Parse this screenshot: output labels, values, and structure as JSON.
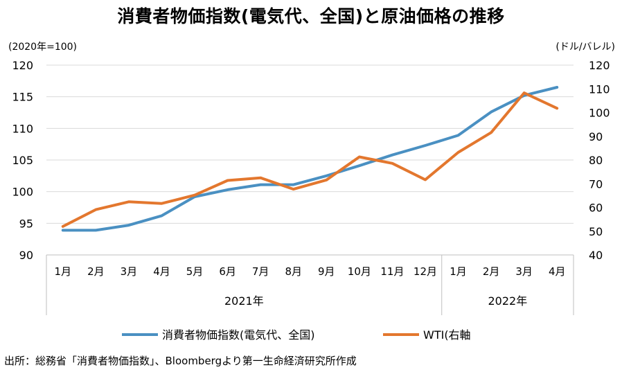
{
  "title": "消費者物価指数(電気代、全国)と原油価格の推移",
  "source": "出所：総務省「消費者物価指数」、Bloombergより第一生命経済研究所作成",
  "colors": {
    "cpi": "#4a90c2",
    "wti": "#e3772e",
    "grid": "#d9d9d9",
    "axis": "#bfbfbf"
  },
  "chart_data": {
    "type": "line",
    "title": "消費者物価指数(電気代、全国)と原油価格の推移",
    "x": [
      "1月",
      "2月",
      "3月",
      "4月",
      "5月",
      "6月",
      "7月",
      "8月",
      "9月",
      "10月",
      "11月",
      "12月",
      "1月",
      "2月",
      "3月",
      "4月"
    ],
    "year_groups": [
      {
        "label": "2021年",
        "count": 12
      },
      {
        "label": "2022年",
        "count": 4
      }
    ],
    "left_axis": {
      "unit": "(2020年=100)",
      "ylim": [
        90,
        120
      ],
      "ticks": [
        90,
        95,
        100,
        105,
        110,
        115,
        120
      ]
    },
    "right_axis": {
      "unit": "(ドル/バレル)",
      "ylim": [
        40,
        120
      ],
      "ticks": [
        40,
        50,
        60,
        70,
        80,
        90,
        100,
        110,
        120
      ]
    },
    "grid": true,
    "legend_position": "bottom",
    "series": [
      {
        "name": "消費者物価指数(電気代、全国)",
        "axis": "left",
        "color_key": "cpi",
        "values": [
          93.9,
          93.9,
          94.7,
          96.2,
          99.2,
          100.3,
          101.1,
          101.1,
          102.5,
          104.1,
          105.8,
          107.3,
          108.9,
          112.6,
          115.2,
          116.5
        ]
      },
      {
        "name": "WTI(右軸",
        "axis": "right",
        "color_key": "wti",
        "values": [
          52,
          59.1,
          62.4,
          61.7,
          65.2,
          71.4,
          72.5,
          67.7,
          71.6,
          81.3,
          78.6,
          71.7,
          83.2,
          91.6,
          108.3,
          101.8
        ]
      }
    ]
  }
}
